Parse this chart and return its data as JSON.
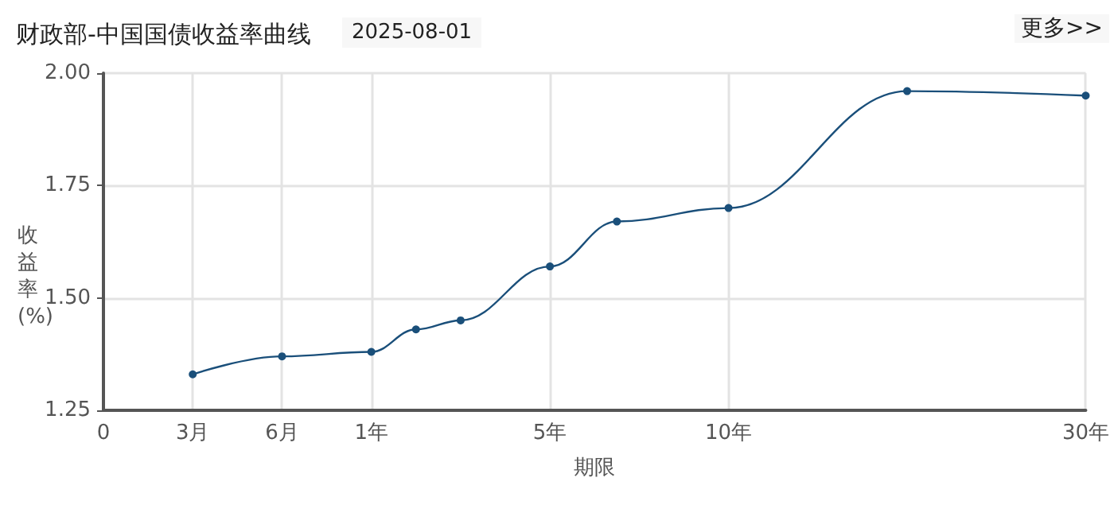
{
  "chart_data": {
    "type": "line",
    "title": "财政部-中国国债收益率曲线",
    "subtitle": "2025-08-01",
    "annotations": [
      "更多>>"
    ],
    "xlabel": "期限",
    "ylabel": "收益率(%)",
    "categories": [
      "0",
      null,
      null,
      null,
      "3月",
      null,
      null,
      null,
      "6月",
      null,
      null,
      null,
      "1年",
      null,
      null,
      null,
      null,
      null,
      null,
      null,
      "5年",
      null,
      null,
      null,
      null,
      null,
      null,
      null,
      "10年",
      null,
      null,
      null,
      null,
      null,
      null,
      null,
      null,
      null,
      null,
      null,
      null,
      null,
      null,
      null,
      "30年"
    ],
    "series": [
      {
        "color": "#1a4f7a",
        "values": [
          null,
          null,
          null,
          null,
          1.33,
          null,
          null,
          null,
          1.37,
          null,
          null,
          null,
          1.38,
          null,
          1.43,
          null,
          1.45,
          null,
          null,
          null,
          1.57,
          null,
          null,
          1.67,
          null,
          null,
          null,
          null,
          1.7,
          null,
          null,
          null,
          null,
          null,
          null,
          null,
          1.96,
          null,
          null,
          null,
          null,
          null,
          null,
          null,
          1.95
        ]
      }
    ],
    "ylim": [
      1.25,
      2
    ],
    "yticks": [
      {
        "value": 1.25,
        "label": "1.25"
      },
      {
        "value": 1.5,
        "label": "1.50"
      },
      {
        "value": 1.75,
        "label": "1.75"
      },
      {
        "value": 2,
        "label": "2.00"
      }
    ],
    "grid": true,
    "marker": "circle",
    "line_style": "solid"
  }
}
